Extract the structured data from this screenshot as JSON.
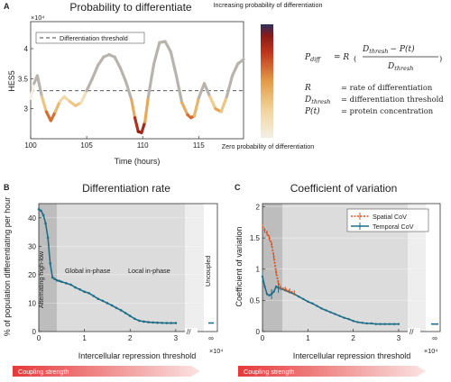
{
  "panel_labels": {
    "a": "A",
    "b": "B",
    "c": "C"
  },
  "chart_data": [
    {
      "type": "line",
      "title": "Probability to differentiate",
      "xlabel": "Time (hours)",
      "ylabel": "HES5",
      "y_multiplier": "×10⁴",
      "xlim": [
        100,
        119
      ],
      "ylim": [
        2.5,
        4.45
      ],
      "xticks": [
        100,
        105,
        110,
        115
      ],
      "yticks": [
        3,
        3.5,
        4
      ],
      "threshold": 3.3,
      "threshold_label": "Differentiation threshold",
      "legend_placement": "top-left",
      "series": [
        {
          "x": [
            100,
            100.3,
            100.6,
            101,
            101.4,
            101.8,
            102.2,
            102.6,
            103,
            103.5,
            104,
            104.5,
            105,
            105.5,
            106,
            106.5,
            107,
            107.5,
            108,
            108.5,
            109,
            109.3,
            109.6,
            109.9,
            110.2,
            110.5,
            111,
            111.5,
            112,
            112.5,
            113,
            113.5,
            114,
            114.3,
            114.6,
            115,
            115.5,
            116,
            116.5,
            117,
            117.5,
            118,
            118.5,
            119
          ],
          "y": [
            3.17,
            3.42,
            3.55,
            3.2,
            2.95,
            2.8,
            2.95,
            3.12,
            3.2,
            3.12,
            3.05,
            3.1,
            3.3,
            3.5,
            3.72,
            3.86,
            3.9,
            3.86,
            3.68,
            3.45,
            3.15,
            2.85,
            2.62,
            2.6,
            2.78,
            3.2,
            3.75,
            4.1,
            4.12,
            3.95,
            3.55,
            3.1,
            2.9,
            2.85,
            2.88,
            3.18,
            3.42,
            3.2,
            3.0,
            2.95,
            3.2,
            3.55,
            3.75,
            3.82
          ]
        }
      ]
    },
    {
      "type": "line",
      "title": "Differentiation rate",
      "xlabel": "Intercellular repression threshold",
      "x_multiplier": "×10⁴",
      "ylabel": "% of population differentiating per hour",
      "xlim": [
        0,
        3.2
      ],
      "ylim": [
        0,
        45
      ],
      "xticks": [
        0,
        1,
        2,
        3
      ],
      "inf_tick": "∞",
      "yticks": [
        0,
        10,
        20,
        30,
        40
      ],
      "regions": [
        "Alternating high-low",
        "Global in-phase",
        "Local in-phase",
        "Uncoupled"
      ],
      "series": [
        {
          "x": [
            0,
            0.05,
            0.1,
            0.15,
            0.2,
            0.25,
            0.3,
            0.35,
            0.4,
            0.45,
            0.5,
            0.6,
            0.7,
            0.8,
            0.9,
            1.0,
            1.1,
            1.2,
            1.3,
            1.4,
            1.5,
            1.6,
            1.7,
            1.8,
            1.9,
            2.0,
            2.1,
            2.2,
            2.3,
            2.4,
            2.5,
            2.6,
            2.7,
            2.8,
            2.9,
            3.0
          ],
          "y": [
            43,
            42.5,
            41,
            38,
            33,
            24,
            19,
            18.5,
            18,
            17.8,
            17.5,
            17,
            16.5,
            15.5,
            14.8,
            14,
            13.5,
            12.5,
            11.5,
            10.8,
            10,
            9.2,
            8.3,
            7.5,
            6.5,
            5.5,
            4.5,
            3.8,
            3.5,
            3.3,
            3.2,
            3.1,
            3.05,
            3.0,
            3.0,
            3.0
          ]
        }
      ],
      "uncoupled_value": 3.0,
      "arrow_label": "Coupling strength"
    },
    {
      "type": "line",
      "title": "Coefficient of variation",
      "xlabel": "Intercellular repression threshold",
      "x_multiplier": "×10⁴",
      "ylabel": "Coefficient of variation",
      "xlim": [
        0,
        3.2
      ],
      "ylim": [
        0,
        2.05
      ],
      "xticks": [
        0,
        1,
        2,
        3
      ],
      "inf_tick": "∞",
      "yticks": [
        0,
        0.5,
        1,
        1.5,
        2
      ],
      "legend_placement": "top-right",
      "series": [
        {
          "name": "Spatial CoV",
          "color": "#d9531e",
          "x": [
            0,
            0.05,
            0.1,
            0.15,
            0.2,
            0.25,
            0.3,
            0.35,
            0.4,
            0.5,
            0.6,
            0.7
          ],
          "y": [
            1.68,
            1.62,
            1.58,
            1.5,
            1.4,
            1.2,
            0.95,
            0.78,
            0.7,
            0.68,
            0.65,
            0.62
          ]
        },
        {
          "name": "Temporal CoV",
          "color": "#1f6d86",
          "x": [
            0,
            0.05,
            0.1,
            0.15,
            0.2,
            0.25,
            0.3,
            0.35,
            0.4,
            0.5,
            0.6,
            0.7,
            0.8,
            0.9,
            1.0,
            1.1,
            1.2,
            1.3,
            1.4,
            1.5,
            1.6,
            1.7,
            1.8,
            1.9,
            2.0,
            2.1,
            2.2,
            2.3,
            2.4,
            2.5,
            2.6,
            2.7,
            2.8,
            2.9,
            3.0
          ],
          "y": [
            0.88,
            0.72,
            0.6,
            0.58,
            0.6,
            0.64,
            0.72,
            0.7,
            0.69,
            0.66,
            0.63,
            0.6,
            0.56,
            0.52,
            0.48,
            0.45,
            0.41,
            0.37,
            0.34,
            0.31,
            0.28,
            0.25,
            0.22,
            0.2,
            0.17,
            0.15,
            0.14,
            0.13,
            0.13,
            0.12,
            0.12,
            0.12,
            0.12,
            0.12,
            0.12
          ]
        }
      ],
      "uncoupled_value": 0.12,
      "arrow_label": "Coupling strength"
    }
  ],
  "colorbar": {
    "top": "Increasing probability of differentiation",
    "bottom": "Zero probability of differentiation"
  },
  "equation": {
    "lhs": "P",
    "lhs_sub": "diff",
    "rhs": "= R",
    "numerator": "D",
    "numerator_sub": "thresh",
    "numerator_rest": "− P(t)",
    "denominator": "D",
    "denominator_sub": "thresh",
    "defs": [
      {
        "sym": "R",
        "sub": "",
        "text": "= rate of differentiation"
      },
      {
        "sym": "D",
        "sub": "thresh",
        "text": "= differentiation threshold"
      },
      {
        "sym": "P(t)",
        "sub": "",
        "text": "= protein concentration"
      }
    ]
  }
}
